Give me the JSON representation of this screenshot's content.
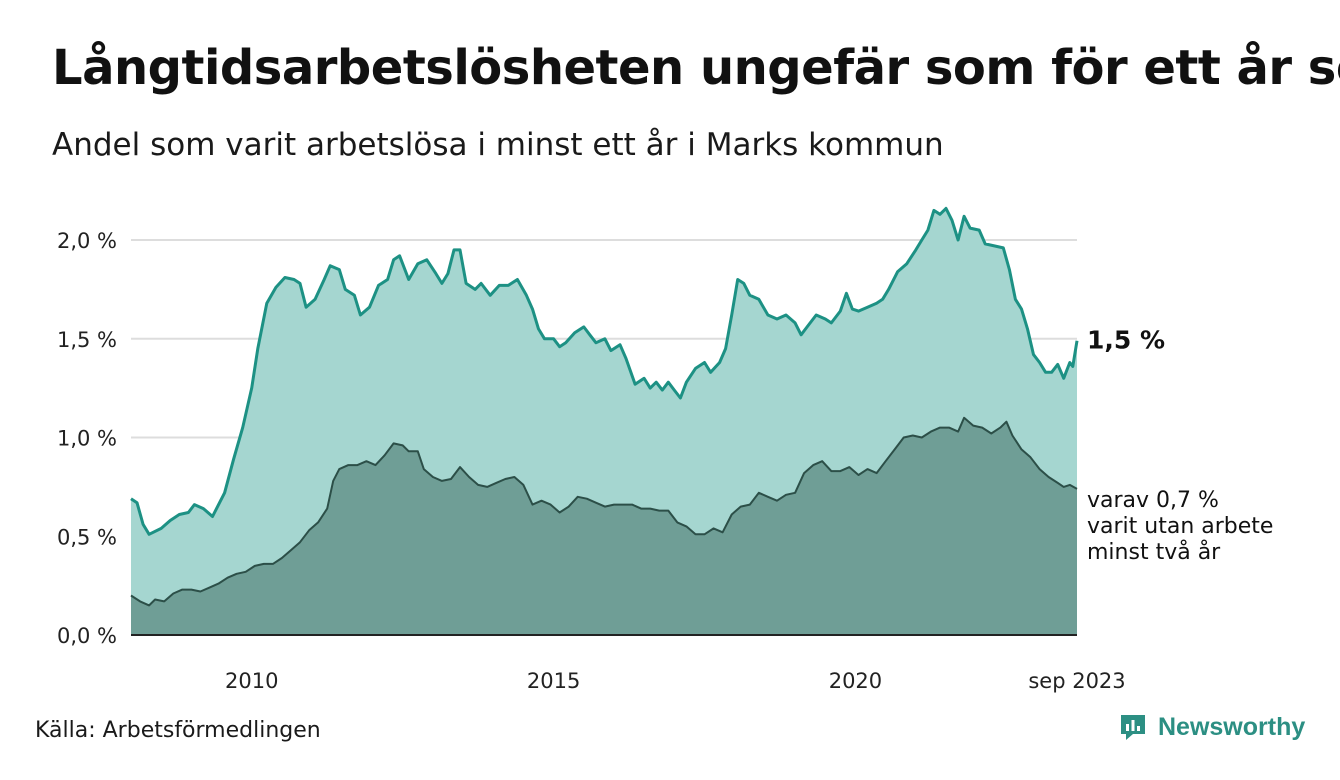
{
  "title": "Långtidsarbetslösheten ungefär som för ett år sen",
  "subtitle": "Andel som varit arbetslösa i minst ett år i Marks kommun",
  "source": "Källa: Arbetsförmedlingen",
  "brand": "Newsworthy",
  "colors": {
    "upper_fill": "#a5d6d0",
    "upper_line": "#1d9184",
    "lower_fill": "#6f9e96",
    "lower_line": "#2c4f48",
    "grid": "#dddddd",
    "brand": "#2c8f83"
  },
  "chart_data": {
    "type": "area",
    "x_start": "2008-01",
    "x_end": "2023-09",
    "xlim": [
      2008.0,
      2023.67
    ],
    "ylim": [
      0,
      2.2
    ],
    "grid": true,
    "y_ticks": [
      {
        "value": 0.0,
        "label": "0,0 %"
      },
      {
        "value": 0.5,
        "label": "0,5 %"
      },
      {
        "value": 1.0,
        "label": "1,0 %"
      },
      {
        "value": 1.5,
        "label": "1,5 %"
      },
      {
        "value": 2.0,
        "label": "2,0 %"
      }
    ],
    "x_ticks": [
      {
        "value": 2010,
        "label": "2010"
      },
      {
        "value": 2015,
        "label": "2015"
      },
      {
        "value": 2020,
        "label": "2020"
      },
      {
        "value": 2023.67,
        "label": "sep 2023"
      }
    ],
    "series": [
      {
        "name": "Minst ett år",
        "end_label": "1,5 %",
        "points": [
          [
            2008.0,
            0.69
          ],
          [
            2008.1,
            0.67
          ],
          [
            2008.2,
            0.56
          ],
          [
            2008.3,
            0.51
          ],
          [
            2008.5,
            0.54
          ],
          [
            2008.65,
            0.58
          ],
          [
            2008.8,
            0.61
          ],
          [
            2008.95,
            0.62
          ],
          [
            2009.05,
            0.66
          ],
          [
            2009.2,
            0.64
          ],
          [
            2009.35,
            0.6
          ],
          [
            2009.55,
            0.72
          ],
          [
            2009.7,
            0.89
          ],
          [
            2009.85,
            1.05
          ],
          [
            2010.0,
            1.25
          ],
          [
            2010.1,
            1.45
          ],
          [
            2010.25,
            1.68
          ],
          [
            2010.4,
            1.76
          ],
          [
            2010.55,
            1.81
          ],
          [
            2010.7,
            1.8
          ],
          [
            2010.8,
            1.78
          ],
          [
            2010.9,
            1.66
          ],
          [
            2011.05,
            1.7
          ],
          [
            2011.2,
            1.8
          ],
          [
            2011.3,
            1.87
          ],
          [
            2011.45,
            1.85
          ],
          [
            2011.55,
            1.75
          ],
          [
            2011.7,
            1.72
          ],
          [
            2011.8,
            1.62
          ],
          [
            2011.95,
            1.66
          ],
          [
            2012.1,
            1.77
          ],
          [
            2012.25,
            1.8
          ],
          [
            2012.35,
            1.9
          ],
          [
            2012.45,
            1.92
          ],
          [
            2012.6,
            1.8
          ],
          [
            2012.75,
            1.88
          ],
          [
            2012.9,
            1.9
          ],
          [
            2013.05,
            1.83
          ],
          [
            2013.15,
            1.78
          ],
          [
            2013.25,
            1.83
          ],
          [
            2013.35,
            1.95
          ],
          [
            2013.45,
            1.95
          ],
          [
            2013.55,
            1.78
          ],
          [
            2013.7,
            1.75
          ],
          [
            2013.8,
            1.78
          ],
          [
            2013.95,
            1.72
          ],
          [
            2014.1,
            1.77
          ],
          [
            2014.25,
            1.77
          ],
          [
            2014.4,
            1.8
          ],
          [
            2014.55,
            1.72
          ],
          [
            2014.65,
            1.65
          ],
          [
            2014.75,
            1.55
          ],
          [
            2014.85,
            1.5
          ],
          [
            2015.0,
            1.5
          ],
          [
            2015.1,
            1.46
          ],
          [
            2015.2,
            1.48
          ],
          [
            2015.35,
            1.53
          ],
          [
            2015.5,
            1.56
          ],
          [
            2015.6,
            1.52
          ],
          [
            2015.7,
            1.48
          ],
          [
            2015.85,
            1.5
          ],
          [
            2015.95,
            1.44
          ],
          [
            2016.1,
            1.47
          ],
          [
            2016.2,
            1.4
          ],
          [
            2016.35,
            1.27
          ],
          [
            2016.5,
            1.3
          ],
          [
            2016.6,
            1.25
          ],
          [
            2016.7,
            1.28
          ],
          [
            2016.8,
            1.24
          ],
          [
            2016.9,
            1.28
          ],
          [
            2017.0,
            1.24
          ],
          [
            2017.1,
            1.2
          ],
          [
            2017.2,
            1.28
          ],
          [
            2017.35,
            1.35
          ],
          [
            2017.5,
            1.38
          ],
          [
            2017.6,
            1.33
          ],
          [
            2017.75,
            1.38
          ],
          [
            2017.85,
            1.45
          ],
          [
            2017.95,
            1.62
          ],
          [
            2018.05,
            1.8
          ],
          [
            2018.15,
            1.78
          ],
          [
            2018.25,
            1.72
          ],
          [
            2018.4,
            1.7
          ],
          [
            2018.55,
            1.62
          ],
          [
            2018.7,
            1.6
          ],
          [
            2018.85,
            1.62
          ],
          [
            2019.0,
            1.58
          ],
          [
            2019.1,
            1.52
          ],
          [
            2019.2,
            1.56
          ],
          [
            2019.35,
            1.62
          ],
          [
            2019.5,
            1.6
          ],
          [
            2019.6,
            1.58
          ],
          [
            2019.75,
            1.64
          ],
          [
            2019.85,
            1.73
          ],
          [
            2019.95,
            1.65
          ],
          [
            2020.05,
            1.64
          ],
          [
            2020.2,
            1.66
          ],
          [
            2020.35,
            1.68
          ],
          [
            2020.45,
            1.7
          ],
          [
            2020.55,
            1.75
          ],
          [
            2020.7,
            1.84
          ],
          [
            2020.85,
            1.88
          ],
          [
            2021.0,
            1.95
          ],
          [
            2021.1,
            2.0
          ],
          [
            2021.2,
            2.05
          ],
          [
            2021.3,
            2.15
          ],
          [
            2021.4,
            2.13
          ],
          [
            2021.5,
            2.16
          ],
          [
            2021.6,
            2.1
          ],
          [
            2021.7,
            2.0
          ],
          [
            2021.8,
            2.12
          ],
          [
            2021.9,
            2.06
          ],
          [
            2022.05,
            2.05
          ],
          [
            2022.15,
            1.98
          ],
          [
            2022.3,
            1.97
          ],
          [
            2022.45,
            1.96
          ],
          [
            2022.55,
            1.85
          ],
          [
            2022.65,
            1.7
          ],
          [
            2022.75,
            1.65
          ],
          [
            2022.85,
            1.55
          ],
          [
            2022.95,
            1.42
          ],
          [
            2023.05,
            1.38
          ],
          [
            2023.15,
            1.33
          ],
          [
            2023.25,
            1.33
          ],
          [
            2023.35,
            1.37
          ],
          [
            2023.45,
            1.3
          ],
          [
            2023.55,
            1.38
          ],
          [
            2023.6,
            1.36
          ],
          [
            2023.67,
            1.49
          ]
        ]
      },
      {
        "name": "Minst två år",
        "end_label_lines": [
          "varav 0,7 %",
          "varit utan arbete",
          "minst två år"
        ],
        "points": [
          [
            2008.0,
            0.2
          ],
          [
            2008.15,
            0.17
          ],
          [
            2008.3,
            0.15
          ],
          [
            2008.4,
            0.18
          ],
          [
            2008.55,
            0.17
          ],
          [
            2008.7,
            0.21
          ],
          [
            2008.85,
            0.23
          ],
          [
            2009.0,
            0.23
          ],
          [
            2009.15,
            0.22
          ],
          [
            2009.3,
            0.24
          ],
          [
            2009.45,
            0.26
          ],
          [
            2009.6,
            0.29
          ],
          [
            2009.75,
            0.31
          ],
          [
            2009.9,
            0.32
          ],
          [
            2010.05,
            0.35
          ],
          [
            2010.2,
            0.36
          ],
          [
            2010.35,
            0.36
          ],
          [
            2010.5,
            0.39
          ],
          [
            2010.65,
            0.43
          ],
          [
            2010.8,
            0.47
          ],
          [
            2010.95,
            0.53
          ],
          [
            2011.1,
            0.57
          ],
          [
            2011.25,
            0.64
          ],
          [
            2011.35,
            0.78
          ],
          [
            2011.45,
            0.84
          ],
          [
            2011.6,
            0.86
          ],
          [
            2011.75,
            0.86
          ],
          [
            2011.9,
            0.88
          ],
          [
            2012.05,
            0.86
          ],
          [
            2012.2,
            0.91
          ],
          [
            2012.35,
            0.97
          ],
          [
            2012.5,
            0.96
          ],
          [
            2012.6,
            0.93
          ],
          [
            2012.75,
            0.93
          ],
          [
            2012.85,
            0.84
          ],
          [
            2013.0,
            0.8
          ],
          [
            2013.15,
            0.78
          ],
          [
            2013.3,
            0.79
          ],
          [
            2013.45,
            0.85
          ],
          [
            2013.6,
            0.8
          ],
          [
            2013.75,
            0.76
          ],
          [
            2013.9,
            0.75
          ],
          [
            2014.05,
            0.77
          ],
          [
            2014.2,
            0.79
          ],
          [
            2014.35,
            0.8
          ],
          [
            2014.5,
            0.76
          ],
          [
            2014.65,
            0.66
          ],
          [
            2014.8,
            0.68
          ],
          [
            2014.95,
            0.66
          ],
          [
            2015.1,
            0.62
          ],
          [
            2015.25,
            0.65
          ],
          [
            2015.4,
            0.7
          ],
          [
            2015.55,
            0.69
          ],
          [
            2015.7,
            0.67
          ],
          [
            2015.85,
            0.65
          ],
          [
            2016.0,
            0.66
          ],
          [
            2016.15,
            0.66
          ],
          [
            2016.3,
            0.66
          ],
          [
            2016.45,
            0.64
          ],
          [
            2016.6,
            0.64
          ],
          [
            2016.75,
            0.63
          ],
          [
            2016.9,
            0.63
          ],
          [
            2017.05,
            0.57
          ],
          [
            2017.2,
            0.55
          ],
          [
            2017.35,
            0.51
          ],
          [
            2017.5,
            0.51
          ],
          [
            2017.65,
            0.54
          ],
          [
            2017.8,
            0.52
          ],
          [
            2017.95,
            0.61
          ],
          [
            2018.1,
            0.65
          ],
          [
            2018.25,
            0.66
          ],
          [
            2018.4,
            0.72
          ],
          [
            2018.55,
            0.7
          ],
          [
            2018.7,
            0.68
          ],
          [
            2018.85,
            0.71
          ],
          [
            2019.0,
            0.72
          ],
          [
            2019.15,
            0.82
          ],
          [
            2019.3,
            0.86
          ],
          [
            2019.45,
            0.88
          ],
          [
            2019.6,
            0.83
          ],
          [
            2019.75,
            0.83
          ],
          [
            2019.9,
            0.85
          ],
          [
            2020.05,
            0.81
          ],
          [
            2020.2,
            0.84
          ],
          [
            2020.35,
            0.82
          ],
          [
            2020.5,
            0.88
          ],
          [
            2020.65,
            0.94
          ],
          [
            2020.8,
            1.0
          ],
          [
            2020.95,
            1.01
          ],
          [
            2021.1,
            1.0
          ],
          [
            2021.25,
            1.03
          ],
          [
            2021.4,
            1.05
          ],
          [
            2021.55,
            1.05
          ],
          [
            2021.7,
            1.03
          ],
          [
            2021.8,
            1.1
          ],
          [
            2021.95,
            1.06
          ],
          [
            2022.1,
            1.05
          ],
          [
            2022.25,
            1.02
          ],
          [
            2022.4,
            1.05
          ],
          [
            2022.5,
            1.08
          ],
          [
            2022.6,
            1.01
          ],
          [
            2022.75,
            0.94
          ],
          [
            2022.9,
            0.9
          ],
          [
            2023.05,
            0.84
          ],
          [
            2023.2,
            0.8
          ],
          [
            2023.35,
            0.77
          ],
          [
            2023.45,
            0.75
          ],
          [
            2023.55,
            0.76
          ],
          [
            2023.67,
            0.74
          ]
        ]
      }
    ]
  }
}
